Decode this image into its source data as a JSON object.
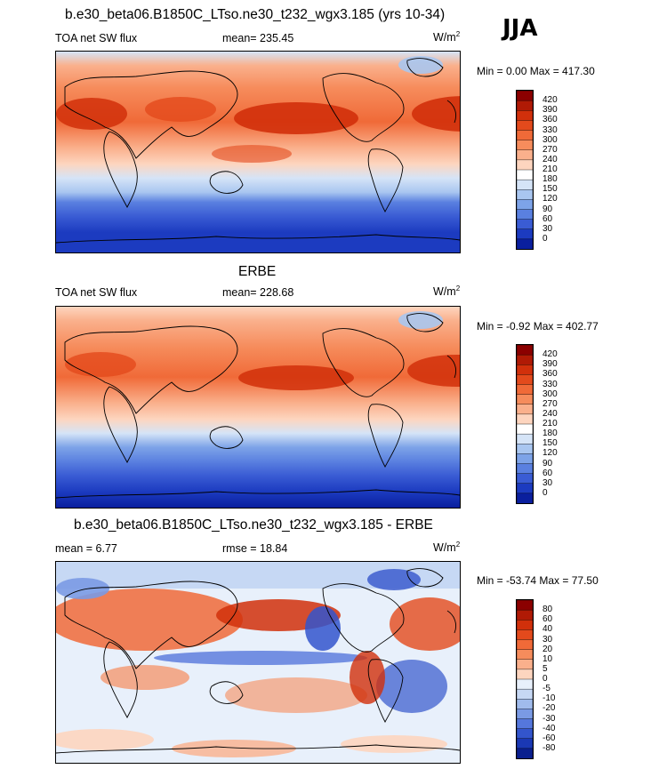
{
  "season": "JJA",
  "panels": [
    {
      "title": "b.e30_beta06.B1850C_LTso.ne30_t232_wgx3.185 (yrs 10-34)",
      "left_label": "TOA net SW flux",
      "center_label": "mean= 235.45",
      "units": "W/m",
      "units_sup": "2",
      "range": "Min =   0.00 Max = 417.30",
      "colorbar_labels": [
        "420",
        "390",
        "360",
        "330",
        "300",
        "270",
        "240",
        "210",
        "180",
        "150",
        "120",
        "90",
        "60",
        "30",
        "0"
      ],
      "colorbar_colors": [
        "#8b0000",
        "#b01a05",
        "#d1300b",
        "#e34a1c",
        "#f06a38",
        "#f68c5c",
        "#fab08c",
        "#fdd5bf",
        "#ffffff",
        "#d5e4f7",
        "#a9c6f0",
        "#7da3e8",
        "#5a80e0",
        "#3a5cd4",
        "#1c3bc0",
        "#0a1f9e"
      ]
    },
    {
      "title": "ERBE",
      "left_label": "TOA net SW flux",
      "center_label": "mean= 228.68",
      "units": "W/m",
      "units_sup": "2",
      "range": "Min =  -0.92 Max = 402.77",
      "colorbar_labels": [
        "420",
        "390",
        "360",
        "330",
        "300",
        "270",
        "240",
        "210",
        "180",
        "150",
        "120",
        "90",
        "60",
        "30",
        "0"
      ],
      "colorbar_colors": [
        "#8b0000",
        "#b01a05",
        "#d1300b",
        "#e34a1c",
        "#f06a38",
        "#f68c5c",
        "#fab08c",
        "#fdd5bf",
        "#ffffff",
        "#d5e4f7",
        "#a9c6f0",
        "#7da3e8",
        "#5a80e0",
        "#3a5cd4",
        "#1c3bc0",
        "#0a1f9e"
      ]
    },
    {
      "title": "b.e30_beta06.B1850C_LTso.ne30_t232_wgx3.185 - ERBE",
      "left_label": "mean =   6.77",
      "center_label": "rmse =  18.84",
      "units": "W/m",
      "units_sup": "2",
      "range": "Min = -53.74 Max =  77.50",
      "colorbar_labels": [
        "80",
        "60",
        "40",
        "30",
        "20",
        "10",
        "5",
        "0",
        "-5",
        "-10",
        "-20",
        "-30",
        "-40",
        "-60",
        "-80"
      ],
      "colorbar_colors": [
        "#8b0000",
        "#b01a05",
        "#d1300b",
        "#e34a1c",
        "#f06a38",
        "#f68c5c",
        "#fab08c",
        "#fdd5bf",
        "#e8f0fb",
        "#c6d8f4",
        "#a0bbec",
        "#7a9ae4",
        "#5577dc",
        "#3355cc",
        "#1a38b4",
        "#0a1f8e"
      ]
    }
  ],
  "chart_data": [
    {
      "type": "heatmap",
      "title": "b.e30_beta06.B1850C_LTso.ne30_t232_wgx3.185 (yrs 10-34)",
      "variable": "TOA net SW flux",
      "units": "W/m2",
      "mean": 235.45,
      "min": 0.0,
      "max": 417.3,
      "levels": [
        0,
        30,
        60,
        90,
        120,
        150,
        180,
        210,
        240,
        270,
        300,
        330,
        360,
        390,
        420
      ]
    },
    {
      "type": "heatmap",
      "title": "ERBE",
      "variable": "TOA net SW flux",
      "units": "W/m2",
      "mean": 228.68,
      "min": -0.92,
      "max": 402.77,
      "levels": [
        0,
        30,
        60,
        90,
        120,
        150,
        180,
        210,
        240,
        270,
        300,
        330,
        360,
        390,
        420
      ]
    },
    {
      "type": "heatmap",
      "title": "b.e30_beta06.B1850C_LTso.ne30_t232_wgx3.185 - ERBE",
      "units": "W/m2",
      "mean": 6.77,
      "rmse": 18.84,
      "min": -53.74,
      "max": 77.5,
      "levels": [
        -80,
        -60,
        -40,
        -30,
        -20,
        -10,
        -5,
        0,
        5,
        10,
        20,
        30,
        40,
        60,
        80
      ]
    }
  ]
}
